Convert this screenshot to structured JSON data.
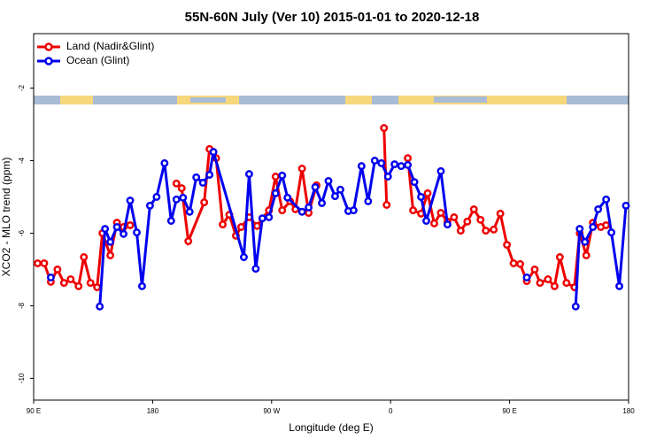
{
  "chart_data": {
    "type": "line",
    "title": "55N-60N July (Ver 10)   2015-01-01 to 2020-12-18",
    "xlabel": "Longitude (deg E)",
    "ylabel": "XCO2 - MLO trend (ppm)",
    "xlim": [
      90,
      540
    ],
    "xticks": [
      {
        "value": 90,
        "label": "90 E"
      },
      180,
      {
        "value": 270,
        "label": "90 W"
      },
      {
        "value": 360,
        "label": "0"
      },
      {
        "value": 450,
        "label": "90 E"
      },
      {
        "value": 540,
        "label": "180"
      }
    ],
    "ylim": [
      -10.6,
      -0.5
    ],
    "yticks": [
      -2,
      -4,
      -6,
      -8,
      -10
    ],
    "legend": "upper left",
    "series": [
      {
        "name": "Land (Nadir&Glint)",
        "color": "#ee0000",
        "x": [
          93,
          98,
          103,
          108,
          113,
          118,
          124,
          128,
          133,
          138,
          142,
          148,
          153,
          158,
          163,
          180,
          198,
          202,
          207,
          219,
          223,
          228,
          233,
          238,
          243,
          247,
          253,
          259,
          263,
          268,
          273,
          278,
          284,
          288,
          293,
          298,
          304,
          330,
          355,
          357,
          365,
          373,
          377,
          383,
          388,
          393,
          398,
          403,
          408,
          413,
          418,
          423,
          428,
          432,
          438,
          443,
          448,
          453,
          458,
          463,
          469,
          473,
          479,
          484,
          488,
          493,
          499,
          503,
          508,
          513,
          519,
          523
        ],
        "values": [
          -6.83,
          -6.83,
          -7.34,
          -7.0,
          -7.37,
          -7.27,
          -7.46,
          -6.66,
          -7.37,
          -7.49,
          -6.0,
          -6.61,
          -5.71,
          -5.83,
          -5.78,
          null,
          -4.63,
          -4.76,
          -6.22,
          -5.15,
          -3.68,
          -3.93,
          -5.76,
          -5.49,
          -6.07,
          -5.83,
          -5.56,
          -5.8,
          -5.59,
          -5.37,
          -4.44,
          -5.37,
          -5.12,
          -5.34,
          -4.22,
          -5.44,
          -4.68,
          null,
          -3.1,
          -5.22,
          null,
          -3.93,
          -5.37,
          -5.46,
          -4.9,
          -5.73,
          -5.44,
          -5.68,
          -5.56,
          -5.93,
          -5.68,
          -5.34,
          -5.63,
          -5.93,
          -5.9,
          -5.46,
          -6.32,
          -6.83,
          -6.85,
          -7.32,
          -7.0,
          -7.37,
          -7.27,
          -7.46,
          -6.66,
          -7.37,
          -7.49,
          -6.0,
          -6.61,
          -5.71,
          -5.83,
          -5.78
        ]
      },
      {
        "name": "Ocean (Glint)",
        "color": "#0000ee",
        "x": [
          103,
          120,
          140,
          144,
          148,
          153,
          158,
          163,
          168,
          172,
          178,
          183,
          189,
          194,
          198,
          203,
          208,
          213,
          218,
          223,
          226,
          249,
          253,
          258,
          263,
          268,
          273,
          278,
          282,
          293,
          298,
          303,
          308,
          313,
          318,
          322,
          328,
          332,
          338,
          343,
          348,
          353,
          358,
          363,
          368,
          373,
          378,
          383,
          387,
          398,
          403,
          430,
          463,
          480,
          500,
          503,
          507,
          513,
          517,
          523,
          527,
          533,
          538
        ],
        "values": [
          -7.22,
          null,
          -8.02,
          -5.88,
          -6.24,
          -5.83,
          -6.02,
          -5.1,
          -5.98,
          -7.46,
          -5.24,
          -5.0,
          -4.07,
          -5.66,
          -5.07,
          -5.02,
          -5.41,
          -4.46,
          -4.61,
          -4.39,
          -3.76,
          -6.66,
          -4.37,
          -6.98,
          -5.59,
          -5.56,
          -4.9,
          -4.41,
          -5.02,
          -5.41,
          -5.29,
          -4.73,
          -5.17,
          -4.56,
          -4.98,
          -4.8,
          -5.39,
          -5.37,
          -4.15,
          -5.12,
          -4.0,
          -4.07,
          -4.44,
          -4.1,
          -4.15,
          -4.12,
          -4.59,
          -5.0,
          -5.66,
          -4.29,
          -5.76,
          null,
          -7.22,
          null,
          -8.02,
          -5.88,
          -6.24,
          -5.83,
          -5.34,
          -5.07,
          -5.98,
          -7.46,
          -5.24
        ]
      }
    ]
  }
}
